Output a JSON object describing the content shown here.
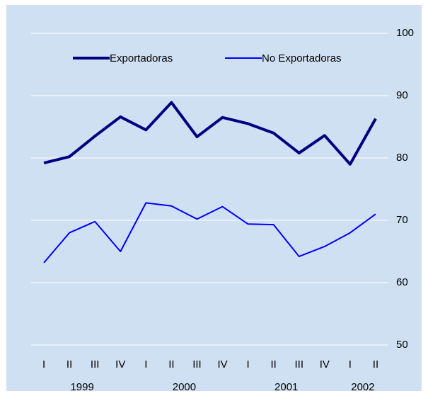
{
  "chart_data": {
    "type": "line",
    "categories": [
      "I",
      "II",
      "III",
      "IV",
      "I",
      "II",
      "III",
      "IV",
      "I",
      "II",
      "III",
      "IV",
      "I",
      "II"
    ],
    "years": [
      "1999",
      "2000",
      "2001",
      "2002"
    ],
    "series": [
      {
        "name": "Exportadoras",
        "color": "#000080",
        "values": [
          79.2,
          80.2,
          83.5,
          86.6,
          84.5,
          88.9,
          83.4,
          86.5,
          85.5,
          84.0,
          80.8,
          83.6,
          79.0,
          86.3
        ]
      },
      {
        "name": "No Exportadoras",
        "color": "#0000ff",
        "values": [
          63.2,
          68.0,
          69.8,
          65.0,
          72.8,
          72.3,
          70.2,
          72.2,
          69.4,
          69.3,
          64.2,
          65.8,
          68.0,
          71.0
        ]
      }
    ],
    "ylim": [
      50,
      100
    ],
    "yticks": [
      50,
      60,
      70,
      80,
      90,
      100
    ],
    "grid": true,
    "legend": "top"
  }
}
